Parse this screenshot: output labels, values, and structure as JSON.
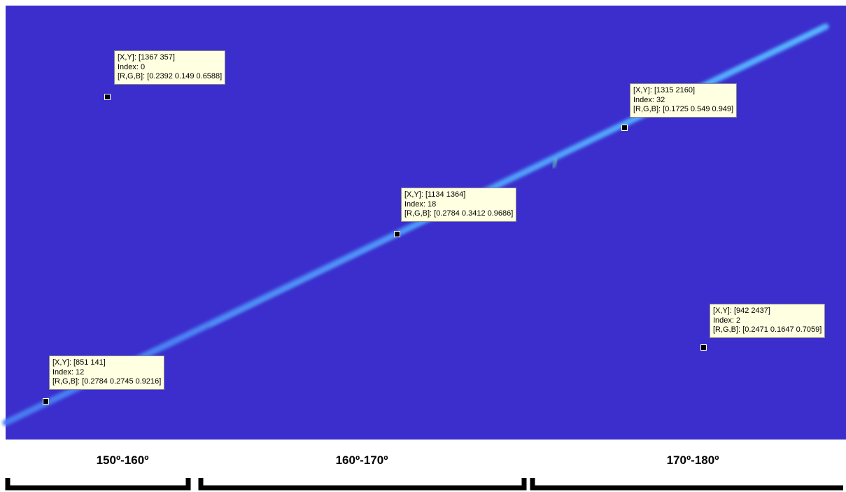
{
  "datatips": [
    {
      "lines": [
        "[X,Y]: [1367 357]",
        "Index: 0",
        "[R,G,B]: [0.2392 0.149 0.6588]"
      ]
    },
    {
      "lines": [
        "[X,Y]: [1315 2160]",
        "Index: 32",
        "[R,G,B]: [0.1725 0.549 0.949]"
      ]
    },
    {
      "lines": [
        "[X,Y]: [1134 1364]",
        "Index: 18",
        "[R,G,B]: [0.2784 0.3412 0.9686]"
      ]
    },
    {
      "lines": [
        "[X,Y]: [942 2437]",
        "Index: 2",
        "[R,G,B]: [0.2471 0.1647 0.7059]"
      ]
    },
    {
      "lines": [
        "[X,Y]: [851 141]",
        "Index: 12",
        "[R,G,B]: [0.2784 0.2745 0.9216]"
      ]
    }
  ],
  "ranges": [
    "150º-160º",
    "160º-170º",
    "170º-180º"
  ]
}
